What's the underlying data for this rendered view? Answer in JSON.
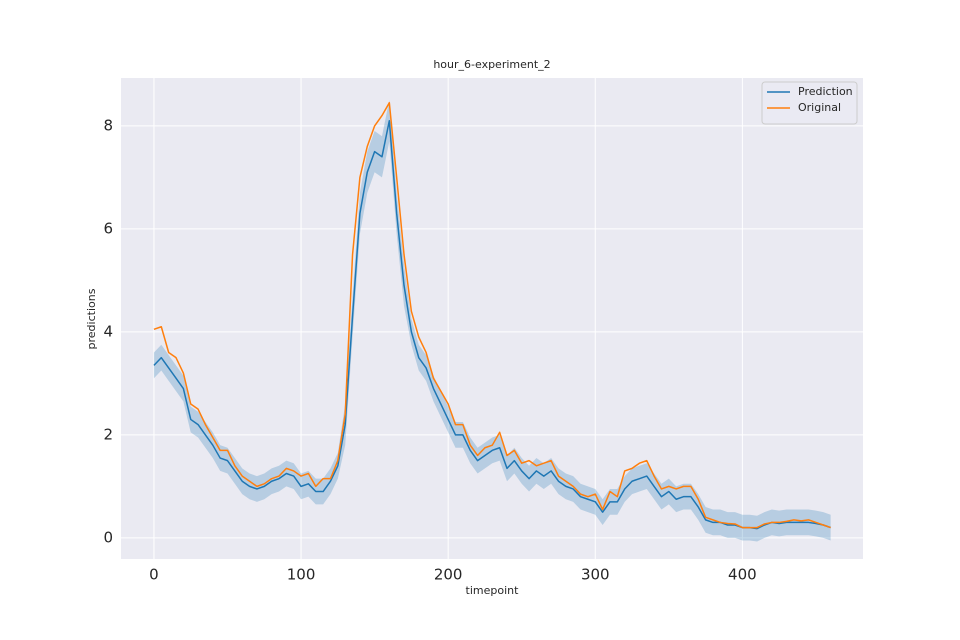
{
  "chart_data": {
    "type": "line",
    "title": "hour_6-experiment_2",
    "x_label": "timepoint",
    "y_label": "predictions",
    "x": [
      0,
      5,
      10,
      15,
      20,
      25,
      30,
      35,
      40,
      45,
      50,
      55,
      60,
      65,
      70,
      75,
      80,
      85,
      90,
      95,
      100,
      105,
      110,
      115,
      120,
      125,
      130,
      135,
      140,
      145,
      150,
      155,
      160,
      165,
      170,
      175,
      180,
      185,
      190,
      195,
      200,
      205,
      210,
      215,
      220,
      225,
      230,
      235,
      240,
      245,
      250,
      255,
      260,
      265,
      270,
      275,
      280,
      285,
      290,
      295,
      300,
      305,
      310,
      315,
      320,
      325,
      330,
      335,
      340,
      345,
      350,
      355,
      360,
      365,
      370,
      375,
      380,
      385,
      390,
      395,
      400,
      405,
      410,
      415,
      420,
      425,
      430,
      435,
      440,
      445,
      450,
      455,
      460
    ],
    "series": [
      {
        "name": "Prediction",
        "color": "#1f77b4",
        "values": [
          3.35,
          3.5,
          3.3,
          3.1,
          2.9,
          2.3,
          2.2,
          2.0,
          1.8,
          1.55,
          1.5,
          1.3,
          1.1,
          1.0,
          0.95,
          1.0,
          1.1,
          1.15,
          1.25,
          1.2,
          1.0,
          1.05,
          0.9,
          0.9,
          1.1,
          1.4,
          2.2,
          4.3,
          6.3,
          7.1,
          7.5,
          7.4,
          8.1,
          6.3,
          4.9,
          4.0,
          3.5,
          3.3,
          2.9,
          2.6,
          2.3,
          2.0,
          2.0,
          1.7,
          1.5,
          1.6,
          1.7,
          1.75,
          1.35,
          1.5,
          1.3,
          1.15,
          1.3,
          1.2,
          1.3,
          1.1,
          1.0,
          0.95,
          0.8,
          0.75,
          0.7,
          0.5,
          0.7,
          0.7,
          0.95,
          1.1,
          1.15,
          1.2,
          1.0,
          0.8,
          0.9,
          0.75,
          0.8,
          0.8,
          0.6,
          0.35,
          0.3,
          0.3,
          0.25,
          0.25,
          0.2,
          0.2,
          0.18,
          0.25,
          0.3,
          0.28,
          0.3,
          0.3,
          0.3,
          0.3,
          0.28,
          0.25,
          0.2
        ],
        "band": {
          "lower": [
            3.1,
            3.25,
            3.05,
            2.85,
            2.65,
            2.05,
            1.95,
            1.75,
            1.55,
            1.3,
            1.25,
            1.05,
            0.85,
            0.75,
            0.7,
            0.75,
            0.85,
            0.9,
            1.0,
            0.95,
            0.75,
            0.8,
            0.65,
            0.65,
            0.85,
            1.15,
            1.8,
            3.9,
            5.9,
            6.7,
            7.1,
            7.0,
            7.7,
            5.9,
            4.5,
            3.75,
            3.25,
            3.05,
            2.65,
            2.35,
            2.05,
            1.75,
            1.75,
            1.45,
            1.25,
            1.35,
            1.45,
            1.5,
            1.1,
            1.25,
            1.05,
            0.9,
            1.05,
            0.95,
            1.05,
            0.85,
            0.75,
            0.7,
            0.55,
            0.5,
            0.45,
            0.25,
            0.45,
            0.45,
            0.7,
            0.85,
            0.9,
            0.95,
            0.75,
            0.55,
            0.65,
            0.5,
            0.55,
            0.55,
            0.35,
            0.1,
            0.05,
            0.05,
            0.0,
            0.0,
            -0.05,
            -0.05,
            -0.07,
            0.0,
            0.05,
            0.03,
            0.05,
            0.05,
            0.05,
            0.05,
            0.03,
            0.0,
            -0.05
          ],
          "upper": [
            3.6,
            3.75,
            3.55,
            3.35,
            3.15,
            2.55,
            2.45,
            2.25,
            2.05,
            1.8,
            1.75,
            1.55,
            1.35,
            1.25,
            1.2,
            1.25,
            1.35,
            1.4,
            1.5,
            1.45,
            1.25,
            1.3,
            1.15,
            1.15,
            1.35,
            1.65,
            2.6,
            4.7,
            6.7,
            7.5,
            7.9,
            7.8,
            8.5,
            6.7,
            5.3,
            4.25,
            3.75,
            3.55,
            3.15,
            2.85,
            2.55,
            2.25,
            2.25,
            1.95,
            1.75,
            1.85,
            1.95,
            2.0,
            1.6,
            1.75,
            1.55,
            1.4,
            1.55,
            1.45,
            1.55,
            1.35,
            1.25,
            1.2,
            1.05,
            1.0,
            0.95,
            0.75,
            0.95,
            0.95,
            1.2,
            1.35,
            1.4,
            1.45,
            1.25,
            1.05,
            1.15,
            1.0,
            1.05,
            1.05,
            0.85,
            0.6,
            0.55,
            0.55,
            0.5,
            0.5,
            0.45,
            0.45,
            0.43,
            0.5,
            0.55,
            0.53,
            0.55,
            0.55,
            0.55,
            0.55,
            0.53,
            0.5,
            0.45
          ]
        }
      },
      {
        "name": "Original",
        "color": "#ff7f0e",
        "values": [
          4.05,
          4.1,
          3.6,
          3.5,
          3.2,
          2.6,
          2.5,
          2.2,
          1.95,
          1.7,
          1.7,
          1.4,
          1.2,
          1.1,
          1.0,
          1.05,
          1.15,
          1.2,
          1.35,
          1.3,
          1.2,
          1.25,
          1.0,
          1.15,
          1.15,
          1.5,
          2.4,
          5.5,
          7.0,
          7.6,
          8.0,
          8.2,
          8.45,
          7.0,
          5.5,
          4.4,
          3.9,
          3.6,
          3.1,
          2.85,
          2.6,
          2.2,
          2.2,
          1.8,
          1.6,
          1.75,
          1.8,
          2.05,
          1.6,
          1.7,
          1.45,
          1.5,
          1.4,
          1.45,
          1.5,
          1.2,
          1.1,
          1.0,
          0.85,
          0.8,
          0.85,
          0.55,
          0.9,
          0.8,
          1.3,
          1.35,
          1.45,
          1.5,
          1.2,
          0.95,
          1.0,
          0.95,
          1.0,
          1.0,
          0.75,
          0.4,
          0.35,
          0.3,
          0.28,
          0.27,
          0.2,
          0.2,
          0.2,
          0.27,
          0.3,
          0.3,
          0.32,
          0.35,
          0.33,
          0.35,
          0.3,
          0.25,
          0.2
        ]
      }
    ],
    "xlim": [
      -22.4,
      482
    ],
    "ylim": [
      -0.41,
      8.93
    ],
    "xticks": [
      0,
      100,
      200,
      300,
      400
    ],
    "yticks": [
      0,
      2,
      4,
      6,
      8
    ],
    "grid": true,
    "legend": "upper right",
    "background": "#eaeaf2"
  }
}
